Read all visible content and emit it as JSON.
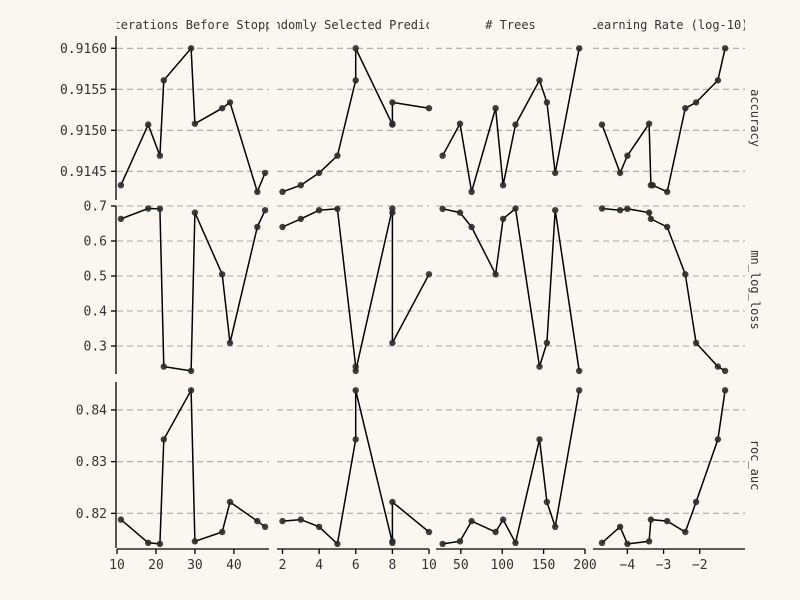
{
  "chart_data": {
    "type": "line",
    "subtype": "faceted line plot with points",
    "grid": "dashed horizontal major gridlines",
    "colors": {
      "background": "#f9f7f0",
      "line": "#000000",
      "point": "#2b2b2b",
      "grid": "#a8a8a8",
      "text": "#333333"
    },
    "columns": [
      {
        "label": "# Iterations Before Stopping",
        "xlim": [
          10,
          49
        ],
        "xticks": [
          10,
          20,
          30,
          40
        ]
      },
      {
        "label": "# Randomly Selected Predictors",
        "xlim": [
          1.7,
          10
        ],
        "xticks": [
          2,
          4,
          6,
          8,
          10
        ]
      },
      {
        "label": "# Trees",
        "xlim": [
          20,
          200
        ],
        "xticks": [
          50,
          100,
          150,
          200
        ]
      },
      {
        "label": "Learning Rate (log-10)",
        "xlim": [
          -4.95,
          -0.75
        ],
        "xticks": [
          -4,
          -3,
          -2
        ]
      }
    ],
    "rows": [
      {
        "label": "accuracy",
        "ylim": [
          0.91415,
          0.91615
        ],
        "yticks": [
          0.9145,
          0.915,
          0.9155,
          0.916
        ],
        "yticklabels": [
          "0.9145",
          "0.9150",
          "0.9155",
          "0.9160"
        ]
      },
      {
        "label": "mn_log_loss",
        "ylim": [
          0.22,
          0.7
        ],
        "yticks": [
          0.3,
          0.4,
          0.5,
          0.6,
          0.7
        ],
        "yticklabels": [
          "0.3",
          "0.4",
          "0.5",
          "0.6",
          "0.7"
        ]
      },
      {
        "label": "roc_auc",
        "ylim": [
          0.8133,
          0.8454
        ],
        "yticks": [
          0.82,
          0.83,
          0.84
        ],
        "yticklabels": [
          "0.82",
          "0.83",
          "0.84"
        ]
      }
    ],
    "panels": [
      [
        {
          "x": [
            11,
            18,
            21,
            22,
            29,
            30,
            37,
            39,
            46,
            48
          ],
          "y": [
            0.91433,
            0.91507,
            0.91469,
            0.91561,
            0.916,
            0.91508,
            0.91527,
            0.91534,
            0.91425,
            0.91448
          ]
        },
        {
          "x": [
            2,
            3,
            4,
            5,
            6,
            6,
            8,
            8,
            8,
            10
          ],
          "y": [
            0.91425,
            0.91433,
            0.91448,
            0.91469,
            0.91561,
            0.916,
            0.91507,
            0.91508,
            0.91534,
            0.91527
          ]
        },
        {
          "x": [
            28,
            49,
            63,
            92,
            101,
            116,
            145,
            154,
            164,
            193
          ],
          "y": [
            0.91469,
            0.91508,
            0.91425,
            0.91527,
            0.91433,
            0.91507,
            0.91561,
            0.91534,
            0.91448,
            0.916
          ]
        },
        {
          "x": [
            -4.7,
            -4.2,
            -4.0,
            -3.4,
            -3.35,
            -3.3,
            -2.9,
            -2.4,
            -2.1,
            -1.5,
            -1.3
          ],
          "y": [
            0.91507,
            0.91448,
            0.91469,
            0.91508,
            0.91433,
            0.91433,
            0.91425,
            0.91527,
            0.91534,
            0.91561,
            0.916
          ]
        }
      ],
      [
        {
          "x": [
            11,
            18,
            21,
            22,
            29,
            30,
            37,
            39,
            46,
            48
          ],
          "y": [
            0.663,
            0.693,
            0.692,
            0.241,
            0.229,
            0.681,
            0.505,
            0.309,
            0.64,
            0.688
          ]
        },
        {
          "x": [
            2,
            3,
            4,
            5,
            6,
            6,
            8,
            8,
            8,
            10
          ],
          "y": [
            0.64,
            0.663,
            0.688,
            0.692,
            0.241,
            0.229,
            0.693,
            0.681,
            0.309,
            0.505
          ]
        },
        {
          "x": [
            28,
            49,
            63,
            92,
            101,
            116,
            145,
            154,
            164,
            193
          ],
          "y": [
            0.692,
            0.681,
            0.64,
            0.505,
            0.663,
            0.693,
            0.241,
            0.309,
            0.688,
            0.229
          ]
        },
        {
          "x": [
            -4.7,
            -4.2,
            -4.0,
            -3.4,
            -3.35,
            -2.9,
            -2.4,
            -2.1,
            -1.5,
            -1.3
          ],
          "y": [
            0.693,
            0.688,
            0.692,
            0.681,
            0.663,
            0.64,
            0.505,
            0.309,
            0.241,
            0.229
          ]
        }
      ],
      [
        {
          "x": [
            11,
            18,
            21,
            22,
            29,
            30,
            37,
            39,
            46,
            48
          ],
          "y": [
            0.8188,
            0.8143,
            0.8141,
            0.8343,
            0.8438,
            0.8146,
            0.8164,
            0.8222,
            0.8185,
            0.8174
          ]
        },
        {
          "x": [
            2,
            3,
            4,
            5,
            6,
            6,
            8,
            8,
            8,
            10
          ],
          "y": [
            0.8185,
            0.8188,
            0.8174,
            0.8141,
            0.8343,
            0.8438,
            0.8143,
            0.8146,
            0.8222,
            0.8164
          ]
        },
        {
          "x": [
            28,
            49,
            63,
            92,
            101,
            116,
            145,
            154,
            164,
            193
          ],
          "y": [
            0.8141,
            0.8146,
            0.8185,
            0.8164,
            0.8188,
            0.8143,
            0.8343,
            0.8222,
            0.8174,
            0.8438
          ]
        },
        {
          "x": [
            -4.7,
            -4.2,
            -4.0,
            -3.4,
            -3.35,
            -2.9,
            -2.4,
            -2.1,
            -1.5,
            -1.3
          ],
          "y": [
            0.8143,
            0.8174,
            0.8141,
            0.8146,
            0.8188,
            0.8185,
            0.8164,
            0.8222,
            0.8343,
            0.8438
          ]
        }
      ]
    ]
  }
}
